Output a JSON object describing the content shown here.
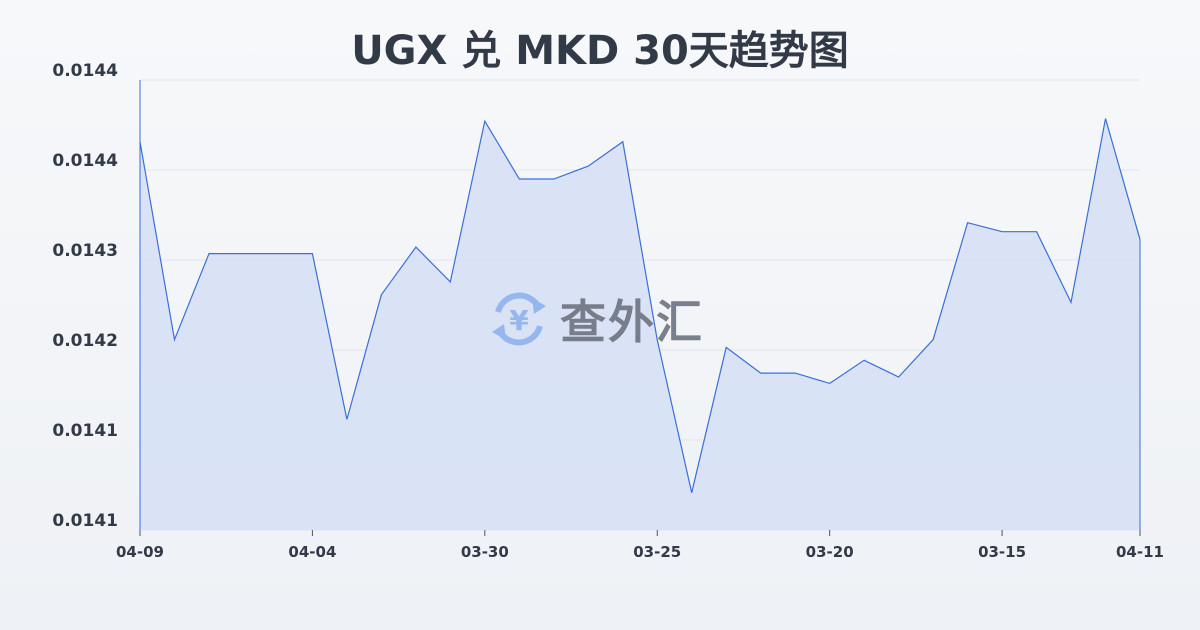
{
  "chart_data": {
    "type": "area",
    "title": "UGX 兑 MKD 30天趋势图",
    "xlabel": "",
    "ylabel": "",
    "ylim": [
      0.01408,
      0.01443
    ],
    "y_tick_labels": [
      "0.0144",
      "0.0144",
      "0.0143",
      "0.0142",
      "0.0141",
      "0.0141"
    ],
    "x_tick_labels": [
      {
        "index": 0,
        "label": "04-09"
      },
      {
        "index": 5,
        "label": "04-04"
      },
      {
        "index": 10,
        "label": "03-30"
      },
      {
        "index": 15,
        "label": "03-25"
      },
      {
        "index": 20,
        "label": "03-20"
      },
      {
        "index": 25,
        "label": "03-15"
      },
      {
        "index": 29,
        "label": "04-11"
      }
    ],
    "values": [
      0.014382,
      0.014228,
      0.014295,
      0.014295,
      0.014295,
      0.014295,
      0.014166,
      0.014263,
      0.0143,
      0.014273,
      0.014398,
      0.014353,
      0.014353,
      0.014363,
      0.014382,
      0.014228,
      0.014109,
      0.014222,
      0.014202,
      0.014202,
      0.014194,
      0.014212,
      0.014199,
      0.014228,
      0.014319,
      0.014312,
      0.014312,
      0.014257,
      0.0144,
      0.014306
    ],
    "grid": true,
    "line_color": "#3a6fd8",
    "fill_color": "#d3def5"
  },
  "watermark": {
    "text": "查外汇",
    "icon": "yen-exchange-icon"
  }
}
